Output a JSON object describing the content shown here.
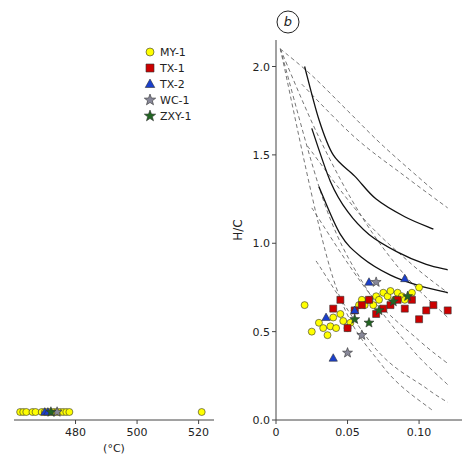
{
  "chart_data": [
    {
      "type": "strip",
      "xlabel": "(°C)",
      "xlim": [
        460,
        525
      ],
      "xticks": [
        480,
        500,
        520
      ],
      "tick_labels": "x",
      "legend": "upper right",
      "series": [
        {
          "name": "MY-1",
          "color": "#ffff00",
          "marker": "circle",
          "x": [
            462,
            463,
            464,
            466,
            467,
            469,
            470,
            471,
            472,
            473,
            474,
            475,
            476,
            477,
            478,
            521
          ]
        },
        {
          "name": "TX-1",
          "color": "#cc0000",
          "marker": "square",
          "x": []
        },
        {
          "name": "TX-2",
          "color": "#1a3fcc",
          "marker": "triangle",
          "x": [
            470,
            471
          ]
        },
        {
          "name": "WC-1",
          "color": "#888899",
          "marker": "star",
          "x": [
            474
          ]
        },
        {
          "name": "ZXY-1",
          "color": "#226622",
          "marker": "star",
          "x": [
            472
          ]
        }
      ]
    },
    {
      "type": "scatter",
      "ylabel": "H/C",
      "annotation": "b",
      "xlim": [
        0,
        0.13
      ],
      "ylim": [
        0.0,
        2.15
      ],
      "xticks": [
        0,
        0.05,
        {
          "value": 0.1,
          "label": "0.10"
        }
      ],
      "yticks": [
        {
          "value": 0.0,
          "label": "0.0"
        },
        0.5,
        {
          "value": 1.0,
          "label": "1.0"
        },
        1.5,
        {
          "value": 2.0,
          "label": "2.0"
        }
      ],
      "series": [
        {
          "type": "line",
          "line_style": "dashed",
          "x": [
            0.003,
            0.025,
            0.05,
            0.075,
            0.11
          ],
          "values": [
            2.1,
            1.95,
            1.75,
            1.55,
            1.3
          ]
        },
        {
          "type": "line",
          "line_style": "dashed",
          "x": [
            0.003,
            0.03,
            0.06,
            0.09,
            0.12
          ],
          "values": [
            2.1,
            1.6,
            1.15,
            0.82,
            0.58
          ]
        },
        {
          "type": "line",
          "line_style": "dashed",
          "x": [
            0.003,
            0.035,
            0.065,
            0.095,
            0.12
          ],
          "values": [
            2.1,
            1.2,
            0.72,
            0.4,
            0.2
          ]
        },
        {
          "type": "line",
          "line_style": "dashed",
          "x": [
            0.003,
            0.04,
            0.075,
            0.11
          ],
          "values": [
            2.1,
            0.8,
            0.3,
            0.05
          ]
        },
        {
          "type": "line",
          "line_style": "dashed",
          "x": [
            0.018,
            0.055,
            0.09,
            0.12
          ],
          "values": [
            1.9,
            1.6,
            1.38,
            1.2
          ]
        },
        {
          "type": "line",
          "line_style": "dashed",
          "x": [
            0.022,
            0.06,
            0.095,
            0.12
          ],
          "values": [
            1.55,
            1.15,
            0.88,
            0.72
          ]
        },
        {
          "type": "line",
          "line_style": "dashed",
          "x": [
            0.025,
            0.065,
            0.1,
            0.12
          ],
          "values": [
            1.2,
            0.72,
            0.45,
            0.32
          ]
        },
        {
          "type": "line",
          "line_style": "dashed",
          "x": [
            0.028,
            0.07,
            0.105,
            0.12
          ],
          "values": [
            0.9,
            0.4,
            0.18,
            0.1
          ]
        },
        {
          "type": "line",
          "line_style": "solid",
          "x": [
            0.02,
            0.03,
            0.04,
            0.055,
            0.07,
            0.09,
            0.11
          ],
          "values": [
            2.0,
            1.7,
            1.5,
            1.38,
            1.25,
            1.15,
            1.08
          ]
        },
        {
          "type": "line",
          "line_style": "solid",
          "x": [
            0.025,
            0.038,
            0.05,
            0.065,
            0.085,
            0.105,
            0.12
          ],
          "values": [
            1.65,
            1.35,
            1.18,
            1.05,
            0.95,
            0.88,
            0.85
          ]
        },
        {
          "type": "line",
          "line_style": "solid",
          "x": [
            0.03,
            0.045,
            0.06,
            0.08,
            0.1,
            0.12
          ],
          "values": [
            1.32,
            1.05,
            0.92,
            0.82,
            0.76,
            0.72
          ]
        },
        {
          "type": "scatter",
          "name": "MY-1",
          "color": "#ffff00",
          "marker": "circle",
          "x": [
            0.02,
            0.025,
            0.03,
            0.033,
            0.036,
            0.038,
            0.04,
            0.042,
            0.045,
            0.047,
            0.05,
            0.052,
            0.055,
            0.058,
            0.06,
            0.062,
            0.065,
            0.068,
            0.07,
            0.072,
            0.075,
            0.078,
            0.08,
            0.083,
            0.085,
            0.088,
            0.09,
            0.095,
            0.1
          ],
          "values": [
            0.65,
            0.5,
            0.55,
            0.52,
            0.48,
            0.53,
            0.58,
            0.52,
            0.6,
            0.56,
            0.52,
            0.55,
            0.62,
            0.65,
            0.68,
            0.65,
            0.68,
            0.65,
            0.7,
            0.68,
            0.72,
            0.7,
            0.73,
            0.68,
            0.72,
            0.7,
            0.68,
            0.72,
            0.75
          ]
        },
        {
          "type": "scatter",
          "name": "TX-1",
          "color": "#cc0000",
          "marker": "square",
          "x": [
            0.04,
            0.045,
            0.05,
            0.055,
            0.06,
            0.065,
            0.07,
            0.075,
            0.08,
            0.085,
            0.09,
            0.095,
            0.1,
            0.105,
            0.11,
            0.12
          ],
          "values": [
            0.63,
            0.68,
            0.52,
            0.62,
            0.65,
            0.68,
            0.6,
            0.63,
            0.65,
            0.68,
            0.63,
            0.68,
            0.57,
            0.62,
            0.65,
            0.62
          ]
        },
        {
          "type": "scatter",
          "name": "TX-2",
          "color": "#1a3fcc",
          "marker": "triangle",
          "x": [
            0.035,
            0.04,
            0.055,
            0.065,
            0.09
          ],
          "values": [
            0.58,
            0.35,
            0.62,
            0.78,
            0.8
          ]
        },
        {
          "type": "scatter",
          "name": "WC-1",
          "color": "#888899",
          "marker": "star",
          "x": [
            0.05,
            0.06,
            0.07
          ],
          "values": [
            0.38,
            0.48,
            0.78
          ]
        },
        {
          "type": "scatter",
          "name": "ZXY-1",
          "color": "#226622",
          "marker": "star",
          "x": [
            0.055,
            0.065,
            0.072,
            0.082,
            0.092
          ],
          "values": [
            0.57,
            0.55,
            0.62,
            0.67,
            0.7
          ]
        }
      ]
    }
  ]
}
